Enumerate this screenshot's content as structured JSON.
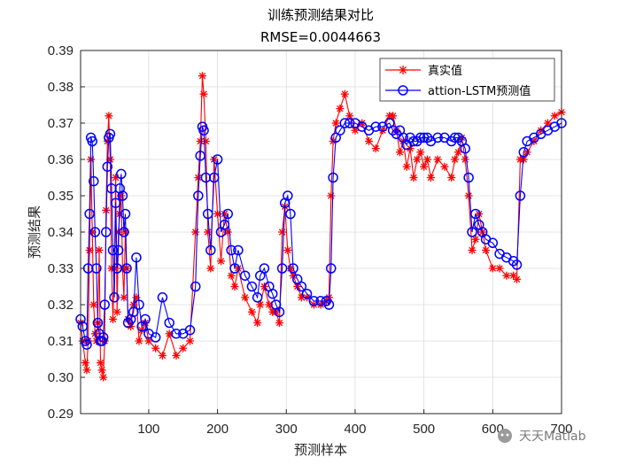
{
  "chart_data": {
    "type": "line",
    "title": "训练预测结果对比",
    "subtitle": "RMSE=0.0044663",
    "xlabel": "预测样本",
    "ylabel": "预测结果",
    "xlim": [
      1,
      700
    ],
    "ylim": [
      0.29,
      0.39
    ],
    "xticks": [
      100,
      200,
      300,
      400,
      500,
      600,
      700
    ],
    "yticks": [
      0.29,
      0.3,
      0.31,
      0.32,
      0.33,
      0.34,
      0.35,
      0.36,
      0.37,
      0.38,
      0.39
    ],
    "grid": true,
    "legend_position": "top-right",
    "series": [
      {
        "name": "真实值",
        "color": "#ff0000",
        "marker": "asterisk",
        "x": [
          1,
          4,
          8,
          10,
          12,
          14,
          16,
          18,
          20,
          22,
          24,
          26,
          28,
          30,
          32,
          34,
          36,
          38,
          40,
          42,
          44,
          46,
          48,
          50,
          52,
          54,
          56,
          58,
          60,
          62,
          64,
          66,
          68,
          70,
          74,
          78,
          82,
          86,
          90,
          95,
          100,
          110,
          120,
          130,
          140,
          150,
          160,
          168,
          172,
          175,
          178,
          180,
          183,
          186,
          190,
          195,
          200,
          205,
          210,
          215,
          220,
          225,
          230,
          240,
          250,
          258,
          262,
          268,
          275,
          280,
          285,
          290,
          294,
          298,
          302,
          306,
          310,
          316,
          322,
          330,
          340,
          350,
          358,
          362,
          365,
          368,
          372,
          378,
          385,
          392,
          400,
          410,
          420,
          430,
          440,
          450,
          455,
          460,
          465,
          470,
          475,
          480,
          485,
          490,
          495,
          500,
          505,
          510,
          520,
          530,
          540,
          545,
          550,
          555,
          560,
          565,
          570,
          575,
          580,
          585,
          590,
          600,
          610,
          620,
          630,
          635,
          640,
          645,
          650,
          660,
          670,
          680,
          690,
          700
        ],
        "y": [
          0.315,
          0.31,
          0.304,
          0.302,
          0.31,
          0.335,
          0.36,
          0.34,
          0.32,
          0.312,
          0.31,
          0.315,
          0.335,
          0.304,
          0.302,
          0.3,
          0.31,
          0.346,
          0.365,
          0.372,
          0.36,
          0.33,
          0.316,
          0.33,
          0.355,
          0.318,
          0.34,
          0.345,
          0.35,
          0.33,
          0.322,
          0.34,
          0.33,
          0.316,
          0.314,
          0.32,
          0.322,
          0.31,
          0.313,
          0.315,
          0.31,
          0.308,
          0.306,
          0.312,
          0.306,
          0.308,
          0.31,
          0.34,
          0.355,
          0.365,
          0.383,
          0.378,
          0.365,
          0.34,
          0.33,
          0.36,
          0.345,
          0.332,
          0.345,
          0.34,
          0.328,
          0.325,
          0.33,
          0.322,
          0.318,
          0.315,
          0.32,
          0.325,
          0.32,
          0.318,
          0.318,
          0.315,
          0.34,
          0.347,
          0.335,
          0.33,
          0.328,
          0.325,
          0.322,
          0.322,
          0.32,
          0.32,
          0.321,
          0.322,
          0.35,
          0.365,
          0.37,
          0.374,
          0.378,
          0.372,
          0.368,
          0.37,
          0.365,
          0.363,
          0.368,
          0.372,
          0.372,
          0.368,
          0.362,
          0.365,
          0.358,
          0.363,
          0.355,
          0.36,
          0.362,
          0.358,
          0.36,
          0.355,
          0.36,
          0.358,
          0.355,
          0.36,
          0.362,
          0.366,
          0.36,
          0.35,
          0.335,
          0.338,
          0.345,
          0.34,
          0.335,
          0.33,
          0.33,
          0.328,
          0.328,
          0.327,
          0.36,
          0.36,
          0.362,
          0.365,
          0.368,
          0.37,
          0.372,
          0.373
        ]
      },
      {
        "name": "attion-LSTM预测值",
        "color": "#0000ff",
        "marker": "circle",
        "x": [
          1,
          4,
          8,
          10,
          12,
          14,
          16,
          18,
          20,
          22,
          24,
          26,
          28,
          30,
          32,
          34,
          36,
          38,
          40,
          42,
          44,
          46,
          48,
          50,
          52,
          54,
          56,
          58,
          60,
          62,
          64,
          66,
          68,
          70,
          74,
          78,
          82,
          86,
          90,
          95,
          100,
          110,
          120,
          130,
          140,
          150,
          160,
          168,
          172,
          175,
          178,
          180,
          183,
          186,
          190,
          195,
          200,
          205,
          210,
          215,
          220,
          225,
          230,
          240,
          250,
          258,
          262,
          268,
          275,
          280,
          285,
          290,
          294,
          298,
          302,
          306,
          310,
          316,
          322,
          330,
          340,
          350,
          358,
          362,
          365,
          368,
          372,
          378,
          385,
          392,
          400,
          410,
          420,
          430,
          440,
          450,
          455,
          460,
          465,
          470,
          475,
          480,
          485,
          490,
          495,
          500,
          505,
          510,
          520,
          530,
          540,
          545,
          550,
          555,
          560,
          565,
          570,
          575,
          580,
          585,
          590,
          600,
          610,
          620,
          630,
          635,
          640,
          645,
          650,
          660,
          670,
          680,
          690,
          700
        ],
        "y": [
          0.316,
          0.314,
          0.31,
          0.309,
          0.33,
          0.345,
          0.366,
          0.365,
          0.354,
          0.34,
          0.33,
          0.315,
          0.312,
          0.31,
          0.31,
          0.311,
          0.32,
          0.34,
          0.358,
          0.366,
          0.367,
          0.352,
          0.335,
          0.322,
          0.348,
          0.33,
          0.335,
          0.352,
          0.356,
          0.35,
          0.34,
          0.345,
          0.33,
          0.315,
          0.316,
          0.318,
          0.333,
          0.32,
          0.314,
          0.316,
          0.312,
          0.311,
          0.322,
          0.315,
          0.312,
          0.312,
          0.313,
          0.325,
          0.35,
          0.361,
          0.369,
          0.368,
          0.355,
          0.345,
          0.335,
          0.355,
          0.36,
          0.34,
          0.342,
          0.345,
          0.335,
          0.33,
          0.335,
          0.328,
          0.325,
          0.322,
          0.328,
          0.33,
          0.325,
          0.323,
          0.32,
          0.318,
          0.33,
          0.348,
          0.35,
          0.345,
          0.33,
          0.327,
          0.325,
          0.323,
          0.321,
          0.321,
          0.321,
          0.32,
          0.33,
          0.355,
          0.366,
          0.368,
          0.37,
          0.37,
          0.37,
          0.369,
          0.368,
          0.369,
          0.369,
          0.37,
          0.368,
          0.367,
          0.368,
          0.366,
          0.364,
          0.366,
          0.365,
          0.365,
          0.366,
          0.366,
          0.366,
          0.365,
          0.366,
          0.366,
          0.365,
          0.366,
          0.366,
          0.365,
          0.363,
          0.355,
          0.34,
          0.345,
          0.342,
          0.34,
          0.338,
          0.337,
          0.334,
          0.333,
          0.332,
          0.331,
          0.35,
          0.362,
          0.365,
          0.366,
          0.367,
          0.368,
          0.369,
          0.37
        ]
      }
    ]
  },
  "watermark": {
    "text": "天天Matlab",
    "icon": "wechat-icon"
  }
}
